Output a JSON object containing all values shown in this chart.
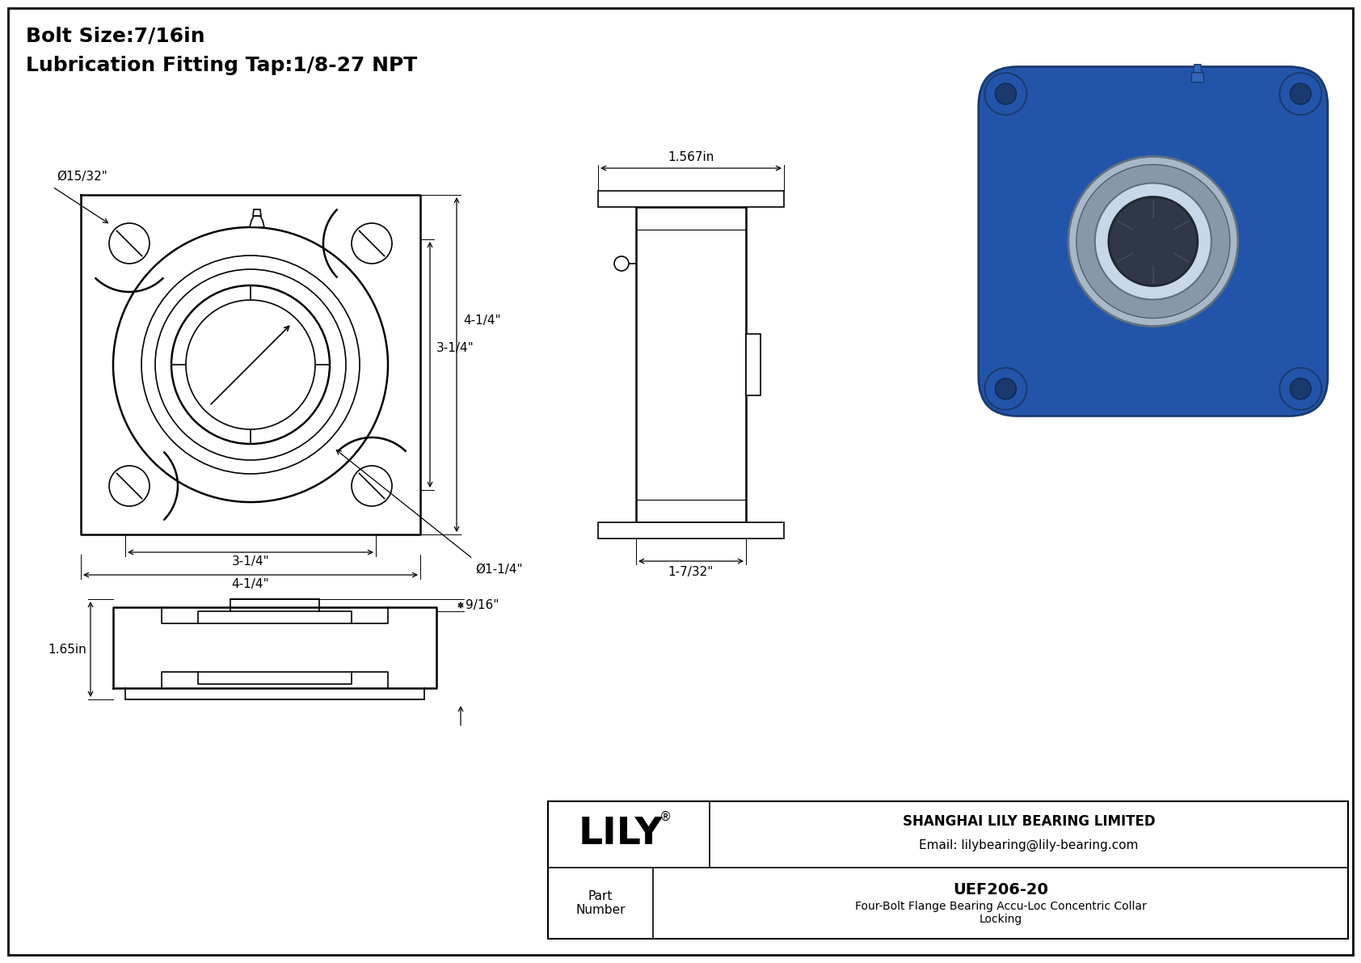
{
  "title_line1": "Bolt Size:7/16in",
  "title_line2": "Lubrication Fitting Tap:1/8-27 NPT",
  "bg_color": "#ffffff",
  "line_color": "#000000",
  "annotations": {
    "bolt_hole": "Ø15/32\"",
    "bore": "Ø1-1/4\"",
    "h1": "3-1/4\"",
    "h2": "4-1/4\"",
    "w1": "3-1/4\"",
    "w2": "4-1/4\"",
    "side_top": "1.567in",
    "side_bot": "1-7/32\"",
    "front_h": "1.65in",
    "front_top": "9/16\""
  },
  "title_fontsize": 18,
  "label_fontsize": 11,
  "part_number": "UEF206-20",
  "part_desc": "Four-Bolt Flange Bearing Accu-Loc Concentric Collar",
  "part_desc2": "Locking",
  "company": "SHANGHAI LILY BEARING LIMITED",
  "email": "Email: lilybearing@lily-bearing.com",
  "part_label": "Part\nNumber",
  "logo": "LILY"
}
